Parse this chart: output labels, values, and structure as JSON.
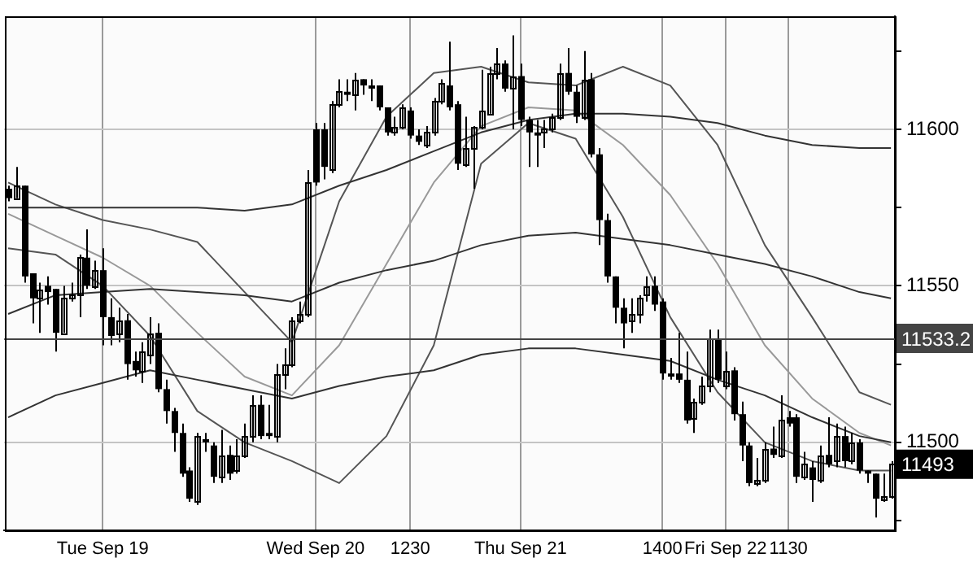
{
  "chart_data": {
    "type": "candlestick",
    "categories": [
      null,
      null,
      null,
      null,
      null,
      null,
      null,
      null,
      null,
      null,
      null,
      null,
      "Tue Sep 19",
      null,
      null,
      null,
      null,
      null,
      null,
      null,
      null,
      null,
      null,
      null,
      null,
      null,
      null,
      null,
      null,
      null,
      null,
      null,
      null,
      null,
      null,
      null,
      null,
      null,
      null,
      "Wed Sep 20",
      null,
      null,
      null,
      null,
      null,
      null,
      null,
      null,
      null,
      null,
      null,
      "1230",
      null,
      null,
      null,
      null,
      null,
      null,
      null,
      null,
      null,
      null,
      null,
      null,
      null,
      "Thu Sep 21",
      null,
      null,
      null,
      null,
      null,
      null,
      null,
      null,
      null,
      null,
      null,
      null,
      null,
      null,
      null,
      null,
      null,
      "1400",
      null,
      null,
      null,
      null,
      null,
      null,
      null,
      "Fri Sep 22",
      null,
      null,
      null,
      null,
      null,
      null,
      null,
      "1130",
      null,
      null,
      null,
      null,
      null,
      null,
      null,
      null,
      null,
      null,
      null,
      null,
      null
    ],
    "series": [
      {
        "type": "line",
        "color": "#333333",
        "values": [
          11575,
          null,
          null,
          null,
          null,
          null,
          11575,
          null,
          null,
          null,
          null,
          null,
          11575,
          null,
          null,
          null,
          null,
          null,
          11575,
          null,
          null,
          null,
          null,
          null,
          11575,
          null,
          null,
          null,
          null,
          null,
          11574,
          null,
          null,
          null,
          null,
          null,
          11576,
          null,
          null,
          null,
          null,
          null,
          11582,
          null,
          null,
          null,
          null,
          null,
          11587,
          null,
          null,
          null,
          null,
          null,
          11593,
          null,
          null,
          null,
          null,
          null,
          11599,
          null,
          null,
          null,
          null,
          null,
          11603,
          null,
          null,
          null,
          null,
          null,
          11605,
          null,
          null,
          null,
          null,
          null,
          11605,
          null,
          null,
          null,
          null,
          null,
          11604,
          null,
          null,
          null,
          null,
          null,
          11602,
          null,
          null,
          null,
          null,
          null,
          11598,
          null,
          null,
          null,
          null,
          null,
          11595,
          null,
          null,
          null,
          null,
          null,
          11594,
          null,
          null,
          null,
          11594
        ]
      },
      {
        "type": "line",
        "color": "#333333",
        "values": [
          11541,
          null,
          null,
          null,
          null,
          null,
          11547,
          null,
          null,
          null,
          null,
          null,
          11548,
          null,
          null,
          null,
          null,
          null,
          11549,
          null,
          null,
          null,
          null,
          null,
          11548,
          null,
          null,
          null,
          null,
          null,
          11547,
          null,
          null,
          null,
          null,
          null,
          11545,
          null,
          null,
          null,
          null,
          null,
          11551,
          null,
          null,
          null,
          null,
          null,
          11555,
          null,
          null,
          null,
          null,
          null,
          11558,
          null,
          null,
          null,
          null,
          null,
          11563,
          null,
          null,
          null,
          null,
          null,
          11566,
          null,
          null,
          null,
          null,
          null,
          11567,
          null,
          null,
          null,
          null,
          null,
          11565,
          null,
          null,
          null,
          null,
          null,
          11563,
          null,
          null,
          null,
          null,
          null,
          11560,
          null,
          null,
          null,
          null,
          null,
          11557,
          null,
          null,
          null,
          null,
          null,
          11553,
          null,
          null,
          null,
          null,
          null,
          11548,
          null,
          null,
          null,
          11546
        ]
      },
      {
        "type": "line",
        "color": "#333333",
        "values": [
          11508,
          null,
          null,
          null,
          null,
          null,
          11515,
          null,
          null,
          null,
          null,
          null,
          11519,
          null,
          null,
          null,
          null,
          null,
          11523,
          null,
          null,
          null,
          null,
          null,
          11520,
          null,
          null,
          null,
          null,
          null,
          11517,
          null,
          null,
          null,
          null,
          null,
          11514,
          null,
          null,
          null,
          null,
          null,
          11518,
          null,
          null,
          null,
          null,
          null,
          11521,
          null,
          null,
          null,
          null,
          null,
          11523,
          null,
          null,
          null,
          null,
          null,
          11528,
          null,
          null,
          null,
          null,
          null,
          11530,
          null,
          null,
          null,
          null,
          null,
          11530,
          null,
          null,
          null,
          null,
          null,
          11528,
          null,
          null,
          null,
          null,
          null,
          11526,
          null,
          null,
          null,
          null,
          null,
          11520,
          null,
          null,
          null,
          null,
          null,
          11515,
          null,
          null,
          null,
          null,
          null,
          11508,
          null,
          null,
          null,
          null,
          null,
          11502,
          null,
          null,
          null,
          11500
        ]
      },
      {
        "type": "line",
        "color": "#555555",
        "values": [
          11583,
          null,
          null,
          null,
          null,
          null,
          11576,
          null,
          null,
          null,
          null,
          null,
          11571,
          null,
          null,
          null,
          null,
          null,
          11568,
          null,
          null,
          null,
          null,
          null,
          11564,
          null,
          null,
          null,
          null,
          null,
          11548,
          null,
          null,
          null,
          null,
          null,
          11532,
          null,
          null,
          null,
          null,
          null,
          11577,
          null,
          null,
          null,
          null,
          null,
          11604,
          null,
          null,
          null,
          null,
          null,
          11618,
          null,
          null,
          null,
          null,
          null,
          11620,
          null,
          null,
          null,
          null,
          null,
          11615,
          null,
          null,
          null,
          null,
          null,
          11614,
          null,
          null,
          null,
          null,
          null,
          11620,
          null,
          null,
          null,
          null,
          null,
          11614,
          null,
          null,
          null,
          null,
          null,
          11595,
          null,
          null,
          null,
          null,
          null,
          11563,
          null,
          null,
          null,
          null,
          null,
          11540,
          null,
          null,
          null,
          null,
          null,
          11516,
          null,
          null,
          null,
          11512
        ]
      },
      {
        "type": "line",
        "color": "#999999",
        "values": [
          11573,
          null,
          null,
          null,
          null,
          null,
          11566,
          null,
          null,
          null,
          null,
          null,
          11559,
          null,
          null,
          null,
          null,
          null,
          11550,
          null,
          null,
          null,
          null,
          null,
          11535,
          null,
          null,
          null,
          null,
          null,
          11521,
          null,
          null,
          null,
          null,
          null,
          11515,
          null,
          null,
          null,
          null,
          null,
          11531,
          null,
          null,
          null,
          null,
          null,
          11557,
          null,
          null,
          null,
          null,
          null,
          11583,
          null,
          null,
          null,
          null,
          null,
          11601,
          null,
          null,
          null,
          null,
          null,
          11607,
          null,
          null,
          null,
          null,
          null,
          11606,
          null,
          null,
          null,
          null,
          null,
          11595,
          null,
          null,
          null,
          null,
          null,
          11579,
          null,
          null,
          null,
          null,
          null,
          11557,
          null,
          null,
          null,
          null,
          null,
          11531,
          null,
          null,
          null,
          null,
          null,
          11514,
          null,
          null,
          null,
          null,
          null,
          11503,
          null,
          null,
          null,
          11499
        ]
      },
      {
        "type": "line",
        "color": "#555555",
        "values": [
          11562,
          null,
          null,
          null,
          null,
          null,
          11560,
          null,
          null,
          null,
          null,
          null,
          11550,
          null,
          null,
          null,
          null,
          null,
          11534,
          null,
          null,
          null,
          null,
          null,
          11510,
          null,
          null,
          null,
          null,
          null,
          11500,
          null,
          null,
          null,
          null,
          null,
          11494,
          null,
          null,
          null,
          null,
          null,
          11487,
          null,
          null,
          null,
          null,
          null,
          11502,
          null,
          null,
          null,
          null,
          null,
          11531,
          null,
          null,
          null,
          null,
          null,
          11589,
          null,
          null,
          null,
          null,
          null,
          11602,
          null,
          null,
          null,
          null,
          null,
          11597,
          null,
          null,
          null,
          null,
          null,
          11572,
          null,
          null,
          null,
          null,
          null,
          11540,
          null,
          null,
          null,
          null,
          null,
          11516,
          null,
          null,
          null,
          null,
          null,
          11500,
          null,
          null,
          null,
          null,
          null,
          11494,
          null,
          null,
          null,
          null,
          null,
          11491,
          null,
          null,
          null,
          11491
        ]
      },
      {
        "color": "#000000",
        "ohlc": [
          [
            11581,
            11582,
            11577,
            11578
          ],
          [
            11578,
            11588,
            11578,
            11582
          ],
          [
            11582,
            11582,
            11551,
            11553
          ],
          [
            11554,
            11554,
            11538,
            11546
          ],
          [
            11546,
            11551,
            11535,
            11549
          ],
          [
            11550,
            11553,
            11544,
            11548
          ],
          [
            11549,
            11549,
            11529,
            11535
          ],
          [
            11535,
            11550,
            11535,
            11546
          ],
          [
            11546,
            11551,
            11545,
            11547
          ],
          [
            11547,
            11560,
            11540,
            11559
          ],
          [
            11559,
            11568,
            11549,
            11550
          ],
          [
            11550,
            11558,
            11549,
            11555
          ],
          [
            11555,
            11562,
            11531,
            11540
          ],
          [
            11540,
            11546,
            11531,
            11534
          ],
          [
            11535,
            11543,
            11532,
            11539
          ],
          [
            11539,
            11541,
            11520,
            11525
          ],
          [
            11526,
            11529,
            11521,
            11523
          ],
          [
            11523,
            11532,
            11519,
            11529
          ],
          [
            11528,
            11540,
            11525,
            11535
          ],
          [
            11535,
            11538,
            11516,
            11517
          ],
          [
            11517,
            11520,
            11506,
            11510
          ],
          [
            11510,
            11511,
            11497,
            11503
          ],
          [
            11503,
            11506,
            11489,
            11490
          ],
          [
            11491,
            11492,
            11481,
            11482
          ],
          [
            11481,
            11503,
            11480,
            11502
          ],
          [
            11501,
            11503,
            11497,
            11500
          ],
          [
            11499,
            11500,
            11487,
            11489
          ],
          [
            11489,
            11504,
            11487,
            11496
          ],
          [
            11496,
            11499,
            11488,
            11490
          ],
          [
            11491,
            11501,
            11490,
            11496
          ],
          [
            11496,
            11506,
            11495,
            11502
          ],
          [
            11502,
            11515,
            11500,
            11512
          ],
          [
            11512,
            11515,
            11501,
            11502
          ],
          [
            11503,
            11512,
            11501,
            11502
          ],
          [
            11502,
            11525,
            11500,
            11522
          ],
          [
            11522,
            11530,
            11517,
            11525
          ],
          [
            11525,
            11540,
            11524,
            11539
          ],
          [
            11539,
            11545,
            11538,
            11541
          ],
          [
            11541,
            11587,
            11540,
            11583
          ],
          [
            11600,
            11602,
            11582,
            11583
          ],
          [
            11600,
            11602,
            11584,
            11588
          ],
          [
            11587,
            11609,
            11586,
            11608
          ],
          [
            11608,
            11616,
            11607,
            11612
          ],
          [
            11612,
            11616,
            11609,
            11611
          ],
          [
            11611,
            11618,
            11606,
            11616
          ],
          [
            11616,
            11616,
            11611,
            11614
          ],
          [
            11614,
            11616,
            11609,
            11613
          ],
          [
            11614,
            11614,
            11606,
            11607
          ],
          [
            11607,
            11607,
            11598,
            11599
          ],
          [
            11599,
            11604,
            11598,
            11601
          ],
          [
            11601,
            11608,
            11600,
            11607
          ],
          [
            11606,
            11607,
            11597,
            11598
          ],
          [
            11598,
            11600,
            11595,
            11596
          ],
          [
            11595,
            11601,
            11594,
            11599
          ],
          [
            11599,
            11610,
            11598,
            11609
          ],
          [
            11609,
            11616,
            11608,
            11615
          ],
          [
            11614,
            11628,
            11606,
            11607
          ],
          [
            11608,
            11609,
            11587,
            11589
          ],
          [
            11589,
            11604,
            11588,
            11594
          ],
          [
            11594,
            11601,
            11581,
            11601
          ],
          [
            11601,
            11619,
            11600,
            11606
          ],
          [
            11605,
            11620,
            11605,
            11618
          ],
          [
            11618,
            11626,
            11616,
            11621
          ],
          [
            11621,
            11622,
            11612,
            11613
          ],
          [
            11613,
            11630,
            11600,
            11617
          ],
          [
            11617,
            11621,
            11601,
            11603
          ],
          [
            11603,
            11604,
            11588,
            11599
          ],
          [
            11599,
            11603,
            11588,
            11598
          ],
          [
            11599,
            11603,
            11594,
            11600
          ],
          [
            11600,
            11605,
            11599,
            11604
          ],
          [
            11604,
            11621,
            11603,
            11618
          ],
          [
            11618,
            11626,
            11611,
            11612
          ],
          [
            11612,
            11614,
            11602,
            11604
          ],
          [
            11604,
            11625,
            11603,
            11616
          ],
          [
            11616,
            11618,
            11591,
            11592
          ],
          [
            11592,
            11594,
            11563,
            11571
          ],
          [
            11571,
            11573,
            11551,
            11553
          ],
          [
            11553,
            11553,
            11538,
            11543
          ],
          [
            11543,
            11546,
            11530,
            11538
          ],
          [
            11539,
            11546,
            11535,
            11541
          ],
          [
            11541,
            11547,
            11538,
            11546
          ],
          [
            11547,
            11553,
            11545,
            11550
          ],
          [
            11550,
            11553,
            11542,
            11544
          ],
          [
            11545,
            11546,
            11520,
            11522
          ],
          [
            11522,
            11527,
            11520,
            11521
          ],
          [
            11522,
            11535,
            11519,
            11520
          ],
          [
            11520,
            11529,
            11506,
            11507
          ],
          [
            11508,
            11514,
            11503,
            11513
          ],
          [
            11513,
            11521,
            11512,
            11518
          ],
          [
            11518,
            11536,
            11516,
            11533
          ],
          [
            11533,
            11536,
            11519,
            11520
          ],
          [
            11518,
            11529,
            11517,
            11523
          ],
          [
            11523,
            11524,
            11507,
            11509
          ],
          [
            11509,
            11513,
            11494,
            11499
          ],
          [
            11499,
            11500,
            11486,
            11487
          ],
          [
            11487,
            11495,
            11486,
            11488
          ],
          [
            11488,
            11500,
            11487,
            11498
          ],
          [
            11498,
            11505,
            11495,
            11496
          ],
          [
            11496,
            11515,
            11495,
            11507
          ],
          [
            11508,
            11510,
            11505,
            11506
          ],
          [
            11508,
            11509,
            11487,
            11489
          ],
          [
            11489,
            11497,
            11488,
            11493
          ],
          [
            11492,
            11494,
            11481,
            11488
          ],
          [
            11488,
            11499,
            11487,
            11496
          ],
          [
            11496,
            11508,
            11492,
            11493
          ],
          [
            11494,
            11506,
            11492,
            11502
          ],
          [
            11502,
            11505,
            11492,
            11494
          ],
          [
            11494,
            11503,
            11493,
            11500
          ],
          [
            11500,
            11501,
            11490,
            11491
          ],
          [
            11491,
            11491,
            11487,
            11490
          ],
          [
            11490,
            11490,
            11476,
            11482
          ],
          [
            11482,
            11490,
            11481,
            11483
          ],
          [
            11483,
            11494,
            11482,
            11493
          ]
        ]
      }
    ],
    "ylim": [
      11472,
      11636
    ],
    "yticks": [
      {
        "value": 11475,
        "label": null
      },
      11500,
      {
        "value": 11525,
        "label": null
      },
      11550,
      {
        "value": 11575,
        "label": null
      },
      11600,
      {
        "value": 11625,
        "label": null
      }
    ],
    "grid": true,
    "ref_lines": [
      {
        "axis": "y",
        "value": 11533.2,
        "label": "11533.2",
        "color": "#444444"
      }
    ],
    "annotations": [
      "11493"
    ]
  }
}
